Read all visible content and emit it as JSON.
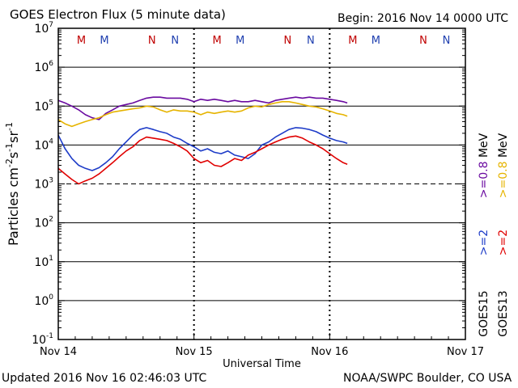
{
  "header": {
    "title": "GOES Electron Flux (5 minute data)",
    "begin": "Begin: 2016 Nov 14 0000 UTC"
  },
  "footer": {
    "updated": "Updated 2016 Nov 16 02:46:03 UTC",
    "source": "NOAA/SWPC Boulder, CO USA"
  },
  "colors": {
    "ge2_goes13": "#e00000",
    "ge2_goes15": "#1e3cc8",
    "ge08_goes13": "#e6b400",
    "ge08_goes15": "#6a0aa0",
    "midnight_marker": "#c00000",
    "noon_marker": "#2040b0"
  },
  "chart_data": {
    "type": "line",
    "xlabel": "Universal Time",
    "ylabel_parts": [
      "Particles cm",
      "-2",
      "s",
      "-1",
      "sr",
      "-1"
    ],
    "yscale": "log",
    "ylim": [
      0.1,
      10000000
    ],
    "xlim": [
      0,
      3
    ],
    "x_unit": "days since 2016 Nov 14 00:00 UTC",
    "x_ticks": [
      {
        "x": 0,
        "label": "Nov 14"
      },
      {
        "x": 1,
        "label": "Nov 15"
      },
      {
        "x": 2,
        "label": "Nov 16"
      },
      {
        "x": 3,
        "label": "Nov 17"
      }
    ],
    "y_ticks": [
      {
        "value": 0.1,
        "base": "10",
        "exp": "-1"
      },
      {
        "value": 1,
        "base": "10",
        "exp": "0"
      },
      {
        "value": 10,
        "base": "10",
        "exp": "1"
      },
      {
        "value": 100,
        "base": "10",
        "exp": "2"
      },
      {
        "value": 1000,
        "base": "10",
        "exp": "3"
      },
      {
        "value": 10000,
        "base": "10",
        "exp": "4"
      },
      {
        "value": 100000,
        "base": "10",
        "exp": "5"
      },
      {
        "value": 1000000,
        "base": "10",
        "exp": "6"
      },
      {
        "value": 10000000,
        "base": "10",
        "exp": "7"
      }
    ],
    "gridlines": [
      1,
      10,
      100,
      10000,
      100000,
      1000000
    ],
    "dashed_threshold": 1000,
    "day_markers": [
      1,
      2
    ],
    "top_markers": [
      {
        "x": 0.17,
        "label": "M",
        "color": "#c00000"
      },
      {
        "x": 0.34,
        "label": "M",
        "color": "#2040b0"
      },
      {
        "x": 0.69,
        "label": "N",
        "color": "#c00000"
      },
      {
        "x": 0.86,
        "label": "N",
        "color": "#2040b0"
      },
      {
        "x": 1.17,
        "label": "M",
        "color": "#c00000"
      },
      {
        "x": 1.34,
        "label": "M",
        "color": "#2040b0"
      },
      {
        "x": 1.69,
        "label": "N",
        "color": "#c00000"
      },
      {
        "x": 1.86,
        "label": "N",
        "color": "#2040b0"
      },
      {
        "x": 2.17,
        "label": "M",
        "color": "#c00000"
      },
      {
        "x": 2.34,
        "label": "M",
        "color": "#2040b0"
      },
      {
        "x": 2.69,
        "label": "N",
        "color": "#c00000"
      },
      {
        "x": 2.86,
        "label": "N",
        "color": "#2040b0"
      }
    ],
    "legend": {
      "satellites": [
        "GOES15",
        "GOES13"
      ],
      "entries": [
        {
          "text": ">=2",
          "color": "#1e3cc8"
        },
        {
          "text": ">=2",
          "color": "#e00000"
        },
        {
          "text": ">=0.8",
          "color": "#6a0aa0"
        },
        {
          "text": ">=0.8",
          "color": "#e6b400"
        }
      ],
      "unit": "MeV"
    },
    "series": [
      {
        "color": "#6a0aa0",
        "x": [
          0,
          0.05,
          0.1,
          0.15,
          0.2,
          0.25,
          0.3,
          0.35,
          0.4,
          0.45,
          0.5,
          0.55,
          0.6,
          0.65,
          0.7,
          0.75,
          0.8,
          0.85,
          0.9,
          0.95,
          1.0,
          1.05,
          1.1,
          1.15,
          1.2,
          1.25,
          1.3,
          1.35,
          1.4,
          1.45,
          1.5,
          1.55,
          1.6,
          1.65,
          1.7,
          1.75,
          1.8,
          1.85,
          1.9,
          1.95,
          2.0,
          2.05,
          2.1,
          2.13
        ],
        "y": [
          140000,
          120000,
          100000,
          80000,
          60000,
          50000,
          45000,
          65000,
          80000,
          100000,
          110000,
          120000,
          140000,
          160000,
          170000,
          170000,
          160000,
          160000,
          160000,
          150000,
          130000,
          150000,
          140000,
          150000,
          140000,
          130000,
          140000,
          130000,
          130000,
          140000,
          130000,
          120000,
          140000,
          150000,
          160000,
          170000,
          160000,
          170000,
          160000,
          160000,
          150000,
          140000,
          130000,
          120000
        ]
      },
      {
        "color": "#e6b400",
        "x": [
          0,
          0.05,
          0.1,
          0.15,
          0.2,
          0.25,
          0.3,
          0.35,
          0.4,
          0.45,
          0.5,
          0.55,
          0.6,
          0.65,
          0.7,
          0.75,
          0.8,
          0.85,
          0.9,
          0.95,
          1.0,
          1.05,
          1.1,
          1.15,
          1.2,
          1.25,
          1.3,
          1.35,
          1.4,
          1.45,
          1.5,
          1.55,
          1.6,
          1.65,
          1.7,
          1.75,
          1.8,
          1.85,
          1.9,
          1.95,
          2.0,
          2.05,
          2.1,
          2.13
        ],
        "y": [
          45000,
          35000,
          30000,
          35000,
          40000,
          45000,
          50000,
          60000,
          70000,
          75000,
          80000,
          85000,
          90000,
          100000,
          95000,
          80000,
          70000,
          80000,
          75000,
          75000,
          70000,
          60000,
          70000,
          65000,
          70000,
          75000,
          70000,
          75000,
          90000,
          100000,
          95000,
          110000,
          120000,
          130000,
          130000,
          120000,
          110000,
          100000,
          95000,
          85000,
          75000,
          65000,
          60000,
          55000
        ]
      },
      {
        "color": "#1e3cc8",
        "x": [
          0,
          0.05,
          0.1,
          0.15,
          0.2,
          0.25,
          0.3,
          0.35,
          0.4,
          0.45,
          0.5,
          0.55,
          0.6,
          0.65,
          0.7,
          0.75,
          0.8,
          0.85,
          0.9,
          0.95,
          1.0,
          1.05,
          1.1,
          1.15,
          1.2,
          1.25,
          1.3,
          1.35,
          1.4,
          1.45,
          1.5,
          1.55,
          1.6,
          1.65,
          1.7,
          1.75,
          1.8,
          1.85,
          1.9,
          1.95,
          2.0,
          2.05,
          2.1,
          2.13
        ],
        "y": [
          18000,
          8000,
          4500,
          3000,
          2500,
          2200,
          2600,
          3500,
          5000,
          8000,
          12000,
          18000,
          25000,
          28000,
          25000,
          22000,
          20000,
          16000,
          14000,
          11000,
          9000,
          7000,
          8000,
          6500,
          6000,
          7000,
          5500,
          5000,
          4500,
          6000,
          10000,
          12000,
          16000,
          20000,
          25000,
          28000,
          27000,
          25000,
          22000,
          18000,
          15000,
          13000,
          12000,
          11000
        ]
      },
      {
        "color": "#e00000",
        "x": [
          0,
          0.05,
          0.1,
          0.15,
          0.2,
          0.25,
          0.3,
          0.35,
          0.4,
          0.45,
          0.5,
          0.55,
          0.6,
          0.65,
          0.7,
          0.75,
          0.8,
          0.85,
          0.9,
          0.95,
          1.0,
          1.05,
          1.1,
          1.15,
          1.2,
          1.25,
          1.3,
          1.35,
          1.4,
          1.45,
          1.5,
          1.55,
          1.6,
          1.65,
          1.7,
          1.75,
          1.8,
          1.85,
          1.9,
          1.95,
          2.0,
          2.05,
          2.1,
          2.13
        ],
        "y": [
          2500,
          1800,
          1300,
          1000,
          1200,
          1400,
          1800,
          2500,
          3500,
          5000,
          7000,
          9000,
          13000,
          16000,
          15000,
          14000,
          13000,
          11000,
          9000,
          7000,
          4500,
          3500,
          4000,
          3000,
          2800,
          3500,
          4500,
          4000,
          5500,
          6500,
          8000,
          10000,
          12000,
          14000,
          16000,
          17000,
          15000,
          12000,
          10000,
          8000,
          6000,
          4500,
          3500,
          3200
        ]
      }
    ]
  }
}
